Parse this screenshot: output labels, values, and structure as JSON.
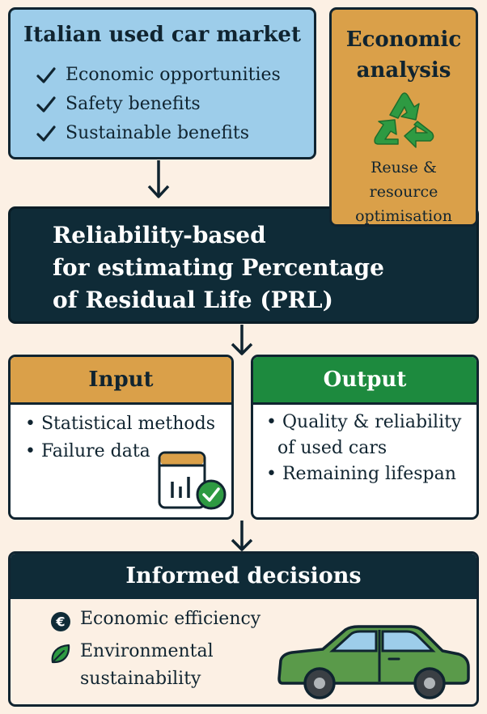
{
  "market": {
    "title": "Italian used car market",
    "items": [
      "Economic opportunities",
      "Safety benefits",
      "Sustainable benefits"
    ]
  },
  "economic": {
    "title_line1": "Economic",
    "title_line2": "analysis",
    "sub_line1": "Reuse &",
    "sub_line2": "resource",
    "sub_line3": "optimisation"
  },
  "reliability": {
    "line1": "Reliability-based",
    "line2": "for estimating Percentage",
    "line3": "of Residual Life (PRL)"
  },
  "input": {
    "title": "Input",
    "items": [
      "Statistical methods",
      "Failure data"
    ]
  },
  "output": {
    "title": "Output",
    "item1_line1": "Quality & reliability",
    "item1_line2": "of used cars",
    "item2": "Remaining lifespan"
  },
  "decisions": {
    "title": "Informed decisions",
    "item1": "Economic efficiency",
    "item2_line1": "Environmental",
    "item2_line2": "sustainability"
  },
  "bullet_char": "•",
  "colors": {
    "background": "#fcf0e4",
    "market_blue": "#9dcdea",
    "economic_orange": "#daa049",
    "dark_navy": "#0f2b37",
    "output_green": "#1d8a3e",
    "car_green": "#5a9a4a",
    "recycle_green": "#2e9a42"
  },
  "icons": [
    "check-icon",
    "recycle-icon",
    "chart-check-icon",
    "euro-icon",
    "leaf-icon",
    "car-icon"
  ]
}
